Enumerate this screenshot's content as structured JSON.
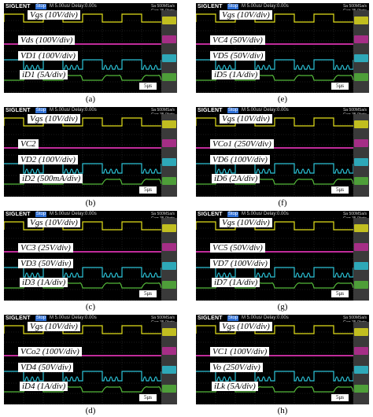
{
  "scope": {
    "brand": "SIGLENT",
    "state": "Stop",
    "timebase": "M 5.00us/  Delay:0.00s",
    "sample_rate": "Sa 500MSa/s",
    "memory": "Curr 35.0kpts"
  },
  "colors": {
    "vgs": "#e3e01a",
    "cap": "#c02c9a",
    "vdev": "#2cc4d8",
    "idev": "#54b83a",
    "grid": "#3a3a3a"
  },
  "panels": [
    {
      "caption": "(a)",
      "time_scale": "5μs",
      "labels": [
        {
          "text": "Vgs (10V/div)"
        },
        {
          "text": "Vds (100V/div)"
        },
        {
          "text": "VD1 (100V/div)"
        },
        {
          "text": "iD1 (5A/div)"
        }
      ]
    },
    {
      "caption": "(b)",
      "time_scale": "5μs",
      "labels": [
        {
          "text": "Vgs (10V/div)"
        },
        {
          "text": "VC2"
        },
        {
          "text": "VD2 (100V/div)"
        },
        {
          "text": "iD2 (500mA/div)"
        }
      ]
    },
    {
      "caption": "(c)",
      "time_scale": "5μs",
      "labels": [
        {
          "text": "Vgs (10V/div)"
        },
        {
          "text": "VC3 (25V/div)"
        },
        {
          "text": "VD3 (50V/div)"
        },
        {
          "text": "iD3 (1A/div)"
        }
      ]
    },
    {
      "caption": "(d)",
      "time_scale": "5μs",
      "labels": [
        {
          "text": "Vgs (10V/div)"
        },
        {
          "text": "VCo2 (100V/div)"
        },
        {
          "text": "VD4 (50V/div)"
        },
        {
          "text": "iD4 (1A/div)"
        }
      ]
    },
    {
      "caption": "(e)",
      "time_scale": "5μs",
      "labels": [
        {
          "text": "Vgs (10V/div)"
        },
        {
          "text": "VC4 (50V/div)"
        },
        {
          "text": "VD5 (50V/div)"
        },
        {
          "text": "iD5 (1A/div)"
        }
      ]
    },
    {
      "caption": "(f)",
      "time_scale": "5μs",
      "labels": [
        {
          "text": "Vgs (10V/div)"
        },
        {
          "text": "VCo1 (250V/div)"
        },
        {
          "text": "VD6 (100V/div)"
        },
        {
          "text": "iD6 (2A/div)"
        }
      ]
    },
    {
      "caption": "(g)",
      "time_scale": "5μs",
      "labels": [
        {
          "text": "Vgs (10V/div)"
        },
        {
          "text": "VC5 (50V/div)"
        },
        {
          "text": "VD7 (100V/div)"
        },
        {
          "text": "iD7 (1A/div)"
        }
      ]
    },
    {
      "caption": "(h)",
      "time_scale": "5μs",
      "labels": [
        {
          "text": "Vgs (10V/div)"
        },
        {
          "text": "VC1 (100V/div)"
        },
        {
          "text": "Vo (250V/div)"
        },
        {
          "text": "iLk (5A/div)"
        }
      ]
    }
  ],
  "chart_data": {
    "type": "line",
    "description_units": "oscilloscope traces, 5 us/div",
    "series": [
      {
        "name": "Vgs",
        "values": [
          1,
          1,
          1,
          1,
          0,
          0,
          0,
          0,
          1,
          1,
          1,
          1,
          0,
          0,
          0,
          0,
          1,
          1,
          1,
          1,
          0,
          0,
          0,
          0,
          1,
          1,
          1,
          1,
          0,
          0,
          0,
          0
        ]
      },
      {
        "name": "VC",
        "values": [
          1,
          1,
          1,
          1,
          1,
          1,
          1,
          1,
          1,
          1,
          1,
          1,
          1,
          1,
          1,
          1,
          1,
          1,
          1,
          1,
          1,
          1,
          1,
          1,
          1,
          1,
          1,
          1,
          1,
          1,
          1,
          1
        ]
      },
      {
        "name": "VD",
        "values": [
          1,
          1,
          1,
          1,
          0,
          0.6,
          0,
          0.6,
          1,
          1,
          1,
          1,
          0,
          0.6,
          0,
          0.6,
          1,
          1,
          1,
          1,
          0,
          0.6,
          0,
          0.6,
          1,
          1,
          1,
          1,
          0,
          0.6,
          0,
          0.6
        ]
      },
      {
        "name": "iD",
        "values": [
          0.2,
          0.2,
          0.2,
          0.2,
          0.6,
          0.6,
          0.6,
          0.6,
          0.2,
          0.2,
          0.2,
          0.2,
          0.6,
          0.6,
          0.6,
          0.6,
          0.2,
          0.2,
          0.2,
          0.2,
          0.6,
          0.6,
          0.6,
          0.6,
          0.2,
          0.2,
          0.2,
          0.2,
          0.6,
          0.6,
          0.6,
          0.6
        ]
      }
    ]
  }
}
